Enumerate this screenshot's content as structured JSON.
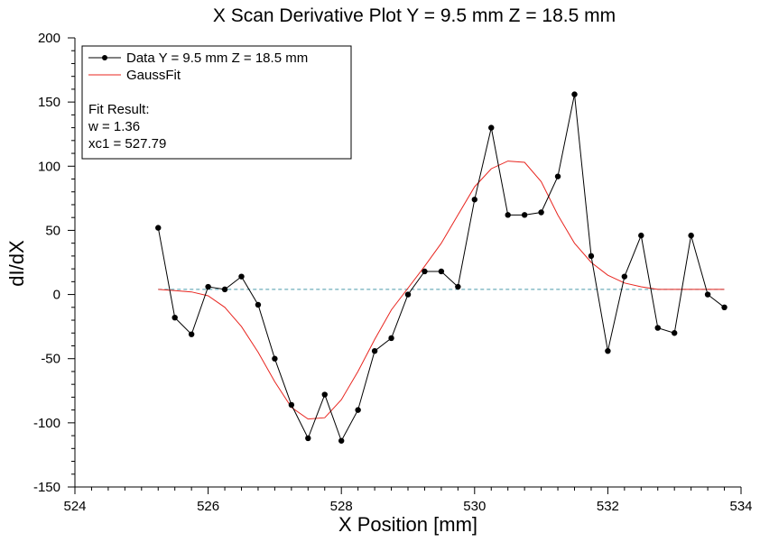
{
  "chart_data": {
    "type": "line",
    "title": "X Scan Derivative Plot Y = 9.5 mm Z = 18.5 mm",
    "xlabel": "X Position [mm]",
    "ylabel": "dI/dX",
    "xlim": [
      524,
      534
    ],
    "ylim": [
      -150,
      200
    ],
    "x_ticks": [
      524,
      526,
      528,
      530,
      532,
      534
    ],
    "x_tick_labels": [
      "524",
      "526",
      "528",
      "530",
      "532",
      "534"
    ],
    "x_minor_step": 0.25,
    "y_ticks": [
      -150,
      -100,
      -50,
      0,
      50,
      100,
      150,
      200
    ],
    "y_tick_labels": [
      "-150",
      "-100",
      "-50",
      "0",
      "50",
      "100",
      "150",
      "200"
    ],
    "y_minor_step": 10,
    "grid": false,
    "legend_position": "top-left",
    "baseline": {
      "y": 4,
      "color": "#4a9aaa",
      "style": "dashed"
    },
    "series": [
      {
        "name": "Data Y = 9.5 mm Z = 18.5 mm",
        "color": "#000000",
        "markers": true,
        "x": [
          525.25,
          525.5,
          525.75,
          526.0,
          526.25,
          526.5,
          526.75,
          527.0,
          527.25,
          527.5,
          527.75,
          528.0,
          528.25,
          528.5,
          528.75,
          529.0,
          529.25,
          529.5,
          529.75,
          530.0,
          530.25,
          530.5,
          530.75,
          531.0,
          531.25,
          531.5,
          531.75,
          532.0,
          532.25,
          532.5,
          532.75,
          533.0,
          533.25,
          533.5,
          533.75
        ],
        "values": [
          52,
          -18,
          -31,
          6,
          4,
          14,
          -8,
          -50,
          -86,
          -112,
          -78,
          -114,
          -90,
          -44,
          -34,
          0,
          18,
          18,
          6,
          74,
          130,
          62,
          62,
          64,
          92,
          156,
          30,
          -44,
          14,
          46,
          -26,
          -30,
          46,
          0,
          -10
        ]
      },
      {
        "name": "GaussFit",
        "color": "#e8251f",
        "markers": false,
        "x": [
          525.25,
          525.5,
          525.75,
          526.0,
          526.25,
          526.5,
          526.75,
          527.0,
          527.25,
          527.5,
          527.75,
          528.0,
          528.25,
          528.5,
          528.75,
          529.0,
          529.25,
          529.5,
          529.75,
          530.0,
          530.25,
          530.5,
          530.75,
          531.0,
          531.25,
          531.5,
          531.75,
          532.0,
          532.25,
          532.5,
          532.75,
          533.0,
          533.25,
          533.5,
          533.75
        ],
        "values": [
          4,
          3,
          2,
          -1,
          -10,
          -25,
          -45,
          -68,
          -88,
          -97,
          -96,
          -82,
          -60,
          -35,
          -12,
          5,
          22,
          40,
          62,
          84,
          98,
          104,
          103,
          88,
          62,
          40,
          25,
          15,
          9,
          6,
          4,
          4,
          4,
          4,
          4
        ]
      }
    ],
    "fit_result": {
      "heading": "Fit Result:",
      "lines": [
        "w = 1.36",
        "xc1 = 527.79"
      ]
    }
  }
}
